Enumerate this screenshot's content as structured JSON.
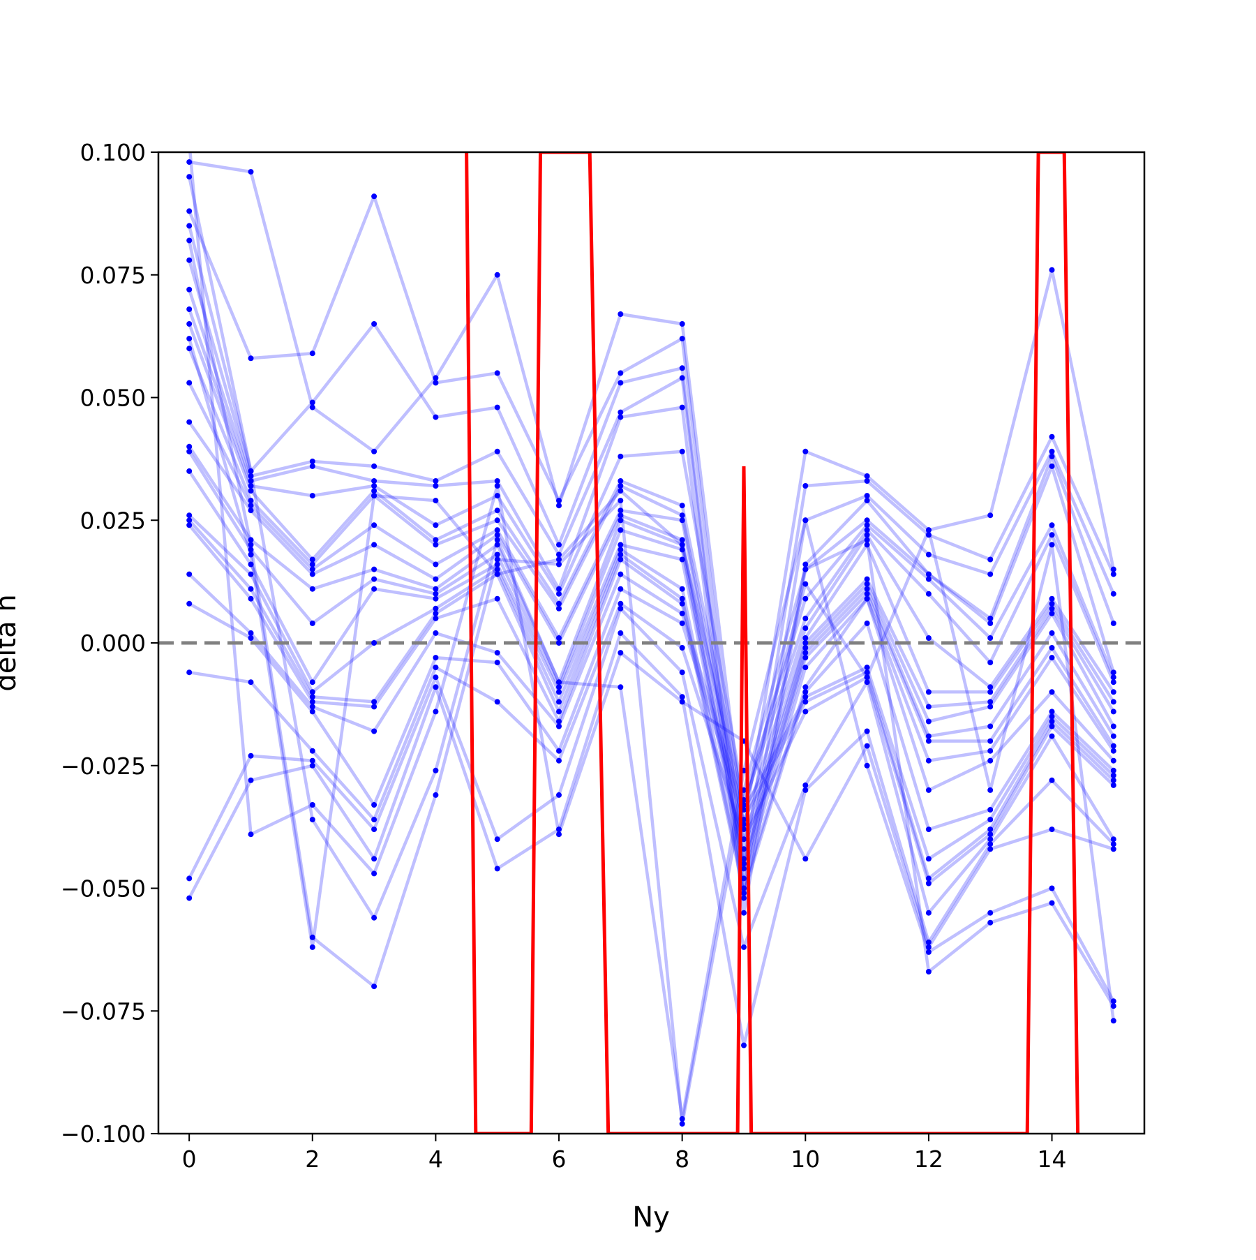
{
  "chart_data": {
    "type": "line",
    "title": "",
    "xlabel": "Ny",
    "ylabel": "delta n",
    "xlim": [
      -0.5,
      15.5
    ],
    "ylim": [
      -0.1,
      0.1
    ],
    "x_ticks": [
      "0",
      "2",
      "4",
      "6",
      "8",
      "10",
      "12",
      "14"
    ],
    "y_ticks": [
      "0.100",
      "0.075",
      "0.050",
      "0.025",
      "0.000",
      "−0.025",
      "−0.050",
      "−0.075",
      "−0.100"
    ],
    "grid": false,
    "legend": "none",
    "colors": {
      "series": "#0000ff",
      "series_line_alpha": 0.25,
      "mean": "#ff0000",
      "reference": "#808080"
    },
    "reference_line": {
      "y": 0.0,
      "style": "dashed"
    },
    "x": [
      0,
      1,
      2,
      3,
      4,
      5,
      6,
      7,
      8,
      9,
      10,
      11,
      12,
      13,
      14,
      15
    ],
    "series": [
      {
        "values": [
          0.098,
          0.096,
          0.048,
          0.039,
          0.054,
          0.075,
          0.028,
          0.067,
          0.065,
          -0.038,
          0.039,
          0.034,
          0.023,
          0.026,
          0.076,
          0.015
        ]
      },
      {
        "values": [
          0.088,
          0.058,
          0.059,
          0.091,
          0.053,
          0.055,
          0.029,
          0.055,
          0.062,
          -0.045,
          0.032,
          0.033,
          0.022,
          0.017,
          0.042,
          0.014
        ]
      },
      {
        "values": [
          0.085,
          0.035,
          0.049,
          0.065,
          0.046,
          0.048,
          0.02,
          0.053,
          0.056,
          -0.05,
          0.025,
          0.03,
          0.018,
          0.014,
          0.039,
          0.01
        ]
      },
      {
        "values": [
          0.078,
          0.034,
          0.037,
          0.036,
          0.033,
          0.039,
          0.018,
          0.047,
          0.054,
          -0.052,
          0.016,
          0.029,
          0.014,
          0.005,
          0.038,
          0.004
        ]
      },
      {
        "values": [
          0.072,
          0.033,
          0.036,
          0.033,
          0.032,
          0.033,
          0.011,
          0.046,
          0.048,
          -0.055,
          0.015,
          0.025,
          0.014,
          0.004,
          0.036,
          -0.006
        ]
      },
      {
        "values": [
          0.068,
          0.032,
          0.03,
          0.032,
          0.024,
          0.03,
          0.01,
          0.038,
          0.039,
          -0.032,
          0.009,
          0.024,
          0.013,
          0.001,
          0.024,
          -0.007
        ]
      },
      {
        "values": [
          0.065,
          0.031,
          0.017,
          0.031,
          0.021,
          0.027,
          0.008,
          0.033,
          0.028,
          -0.033,
          0.005,
          0.023,
          0.01,
          -0.004,
          0.022,
          -0.008
        ]
      },
      {
        "values": [
          0.06,
          0.029,
          0.016,
          0.03,
          0.02,
          0.025,
          0.007,
          0.032,
          0.026,
          -0.037,
          0.003,
          0.022,
          0.001,
          -0.009,
          0.009,
          -0.01
        ]
      },
      {
        "values": [
          0.053,
          0.028,
          0.015,
          0.024,
          0.016,
          0.023,
          0.001,
          0.027,
          0.025,
          -0.04,
          0.001,
          0.02,
          -0.01,
          -0.01,
          0.008,
          -0.012
        ]
      },
      {
        "values": [
          0.045,
          0.027,
          0.014,
          0.02,
          0.013,
          0.022,
          0.0,
          0.026,
          0.021,
          -0.042,
          0.0,
          0.013,
          -0.013,
          -0.012,
          0.007,
          -0.014
        ]
      },
      {
        "values": [
          0.04,
          0.021,
          0.011,
          0.015,
          0.011,
          0.02,
          -0.008,
          0.025,
          0.02,
          -0.044,
          -0.001,
          0.012,
          -0.016,
          -0.013,
          0.006,
          -0.017
        ]
      },
      {
        "values": [
          0.039,
          0.019,
          0.004,
          0.013,
          0.01,
          0.018,
          -0.009,
          0.023,
          0.019,
          -0.045,
          -0.002,
          0.011,
          -0.019,
          -0.017,
          0.002,
          -0.019
        ]
      },
      {
        "values": [
          0.035,
          0.016,
          -0.008,
          0.011,
          0.009,
          0.016,
          -0.01,
          0.02,
          0.017,
          -0.046,
          -0.003,
          0.01,
          -0.02,
          -0.02,
          -0.001,
          -0.021
        ]
      },
      {
        "values": [
          0.026,
          0.014,
          -0.01,
          0.0,
          0.007,
          0.015,
          -0.012,
          0.019,
          0.011,
          -0.048,
          -0.005,
          0.009,
          -0.024,
          -0.022,
          -0.003,
          -0.022
        ]
      },
      {
        "values": [
          0.025,
          0.011,
          -0.011,
          -0.012,
          0.006,
          0.014,
          -0.014,
          0.018,
          0.009,
          -0.05,
          -0.009,
          0.009,
          -0.03,
          -0.024,
          -0.01,
          -0.024
        ]
      },
      {
        "values": [
          0.024,
          0.009,
          -0.012,
          -0.013,
          0.005,
          0.009,
          -0.016,
          0.017,
          0.008,
          -0.051,
          -0.01,
          0.004,
          -0.038,
          -0.034,
          -0.014,
          -0.026
        ]
      },
      {
        "values": [
          0.014,
          0.002,
          -0.013,
          -0.018,
          0.002,
          -0.002,
          -0.017,
          0.014,
          0.006,
          -0.034,
          -0.011,
          -0.005,
          -0.044,
          -0.036,
          -0.015,
          -0.027
        ]
      },
      {
        "values": [
          0.008,
          0.001,
          -0.014,
          -0.033,
          -0.003,
          -0.004,
          -0.022,
          0.011,
          0.004,
          -0.036,
          -0.012,
          -0.006,
          -0.048,
          -0.038,
          -0.016,
          -0.028
        ]
      },
      {
        "values": [
          -0.006,
          -0.008,
          -0.022,
          -0.036,
          -0.005,
          -0.012,
          -0.024,
          0.008,
          -0.001,
          -0.04,
          -0.014,
          -0.007,
          -0.049,
          -0.039,
          -0.017,
          -0.029
        ]
      },
      {
        "values": [
          -0.048,
          -0.023,
          -0.024,
          -0.038,
          -0.007,
          -0.04,
          -0.031,
          0.007,
          -0.006,
          -0.062,
          -0.029,
          -0.008,
          -0.055,
          -0.04,
          -0.019,
          -0.04
        ]
      },
      {
        "values": [
          -0.052,
          -0.028,
          -0.025,
          -0.044,
          -0.009,
          -0.046,
          -0.038,
          0.002,
          -0.011,
          -0.082,
          -0.03,
          -0.018,
          -0.061,
          -0.041,
          -0.028,
          -0.041
        ]
      },
      {
        "values": [
          0.102,
          -0.039,
          -0.033,
          -0.047,
          -0.014,
          0.032,
          -0.039,
          -0.002,
          -0.012,
          -0.02,
          -0.044,
          -0.021,
          -0.062,
          -0.042,
          -0.038,
          -0.042
        ]
      },
      {
        "values": [
          0.095,
          0.035,
          -0.036,
          -0.056,
          -0.026,
          0.021,
          -0.008,
          -0.009,
          -0.097,
          -0.026,
          0.025,
          -0.025,
          -0.063,
          -0.055,
          -0.05,
          -0.073
        ]
      },
      {
        "values": [
          0.082,
          0.02,
          -0.06,
          -0.07,
          -0.031,
          0.017,
          0.016,
          0.029,
          -0.098,
          -0.03,
          0.015,
          0.021,
          -0.067,
          -0.057,
          -0.053,
          -0.074
        ]
      },
      {
        "values": [
          0.062,
          0.018,
          -0.062,
          0.03,
          0.029,
          0.014,
          0.017,
          0.031,
          0.02,
          -0.034,
          0.012,
          -0.007,
          0.023,
          -0.03,
          0.02,
          -0.077
        ]
      }
    ],
    "mean_line": {
      "points": [
        [
          4.5,
          0.1
        ],
        [
          4.65,
          -0.1
        ],
        [
          5.55,
          -0.1
        ],
        [
          5.7,
          0.1
        ],
        [
          6.5,
          0.1
        ],
        [
          6.8,
          -0.1
        ],
        [
          8.9,
          -0.1
        ],
        [
          9.0,
          0.036
        ],
        [
          9.12,
          -0.1
        ],
        [
          13.6,
          -0.1
        ],
        [
          13.78,
          0.1
        ],
        [
          14.2,
          0.1
        ],
        [
          14.42,
          -0.1
        ]
      ]
    }
  }
}
